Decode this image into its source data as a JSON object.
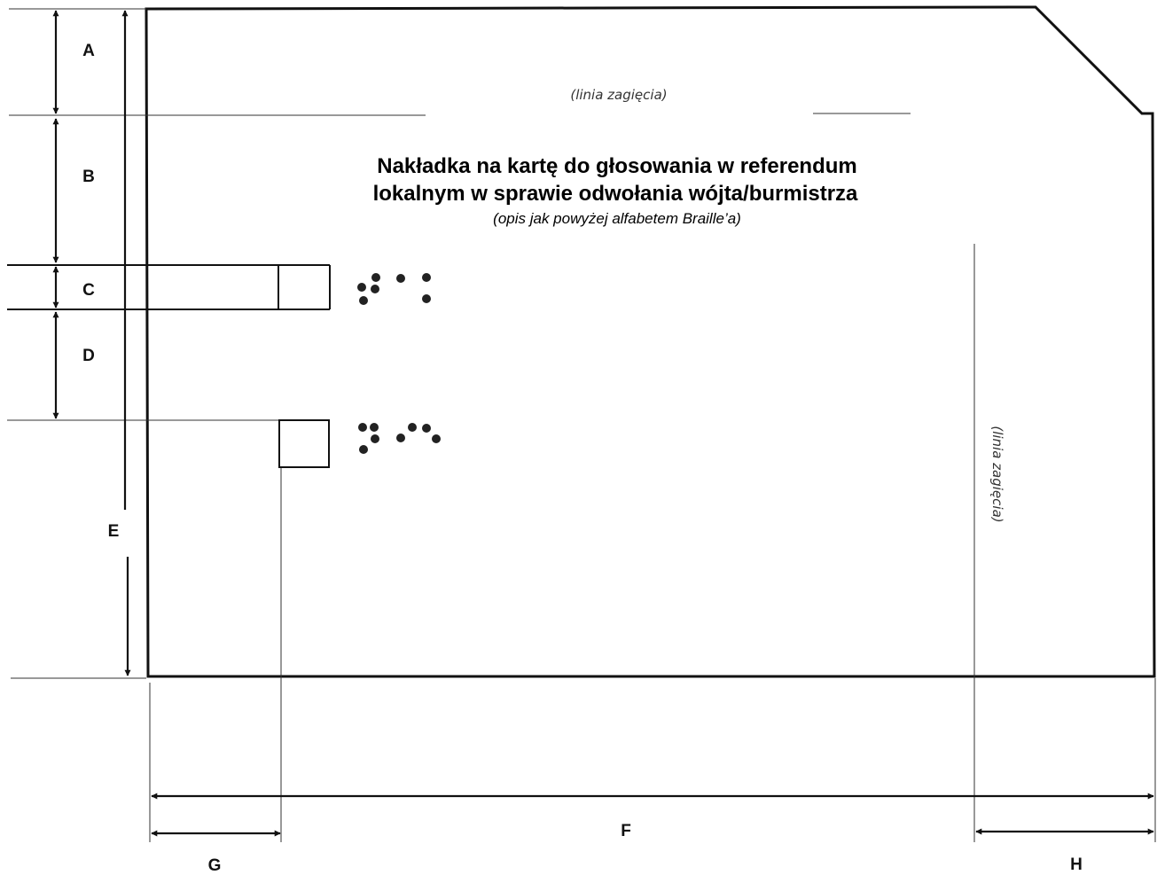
{
  "fold_line_label": "(linia zagięcia)",
  "title_line1": "Nakładka na kartę do głosowania w referendum",
  "title_line2": "lokalnym w sprawie odwołania wójta/burmistrza",
  "subtitle": "(opis jak powyżej alfabetem Braille’a)",
  "dimension_labels": {
    "a": "A",
    "b": "B",
    "c": "C",
    "d": "D",
    "e": "E",
    "f": "F",
    "g": "G",
    "h": "H"
  }
}
